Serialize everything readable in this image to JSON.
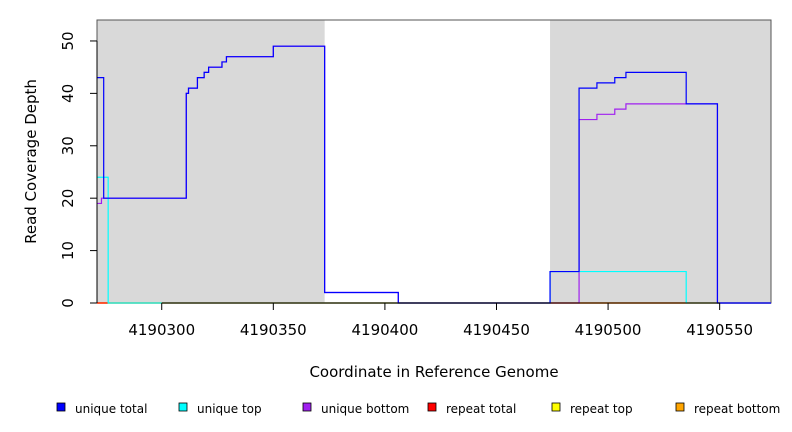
{
  "chart_data": {
    "type": "line",
    "title": "",
    "xlabel": "Coordinate in Reference Genome",
    "ylabel": "Read Coverage Depth",
    "xlim": [
      4190271,
      4190573
    ],
    "ylim": [
      0,
      54
    ],
    "x_ticks": [
      "4190300",
      "4190350",
      "4190400",
      "4190450",
      "4190500",
      "4190550"
    ],
    "x_tick_values": [
      4190300,
      4190350,
      4190400,
      4190450,
      4190500,
      4190550
    ],
    "y_ticks": [
      "0",
      "10",
      "20",
      "30",
      "40",
      "50"
    ],
    "y_tick_values": [
      0,
      10,
      20,
      30,
      40,
      50
    ],
    "grid": false,
    "shaded_regions": [
      {
        "x_start": 4190271,
        "x_end": 4190373,
        "color": "#d9d9d9"
      },
      {
        "x_start": 4190474,
        "x_end": 4190573,
        "color": "#d9d9d9"
      }
    ],
    "series": [
      {
        "name": "unique total",
        "color": "#0000ff",
        "x": [
          4190271,
          4190274,
          4190276,
          4190311,
          4190312,
          4190316,
          4190319,
          4190321,
          4190327,
          4190329,
          4190350,
          4190373,
          4190406,
          4190474,
          4190487,
          4190495,
          4190503,
          4190508,
          4190535,
          4190549,
          4190573
        ],
        "y": [
          43,
          20,
          20,
          40,
          41,
          43,
          44,
          45,
          46,
          47,
          49,
          2,
          0,
          6,
          41,
          42,
          43,
          44,
          38,
          0,
          0
        ]
      },
      {
        "name": "unique top",
        "color": "#00ffff",
        "x": [
          4190271,
          4190274,
          4190276,
          4190474,
          4190535,
          4190573
        ],
        "y": [
          24,
          24,
          0,
          6,
          0,
          0
        ]
      },
      {
        "name": "unique bottom",
        "color": "#a020f0",
        "x": [
          4190271,
          4190273,
          4190276,
          4190311,
          4190312,
          4190316,
          4190319,
          4190321,
          4190327,
          4190329,
          4190350,
          4190373,
          4190406,
          4190487,
          4190495,
          4190503,
          4190508,
          4190549,
          4190573
        ],
        "y": [
          19,
          20,
          20,
          40,
          41,
          43,
          44,
          45,
          46,
          47,
          49,
          2,
          0,
          35,
          36,
          37,
          38,
          0,
          0
        ]
      },
      {
        "name": "repeat total",
        "color": "#ff0000",
        "x": [
          4190271,
          4190573
        ],
        "y": [
          0,
          0
        ]
      },
      {
        "name": "repeat top",
        "color": "#ffff00",
        "x": [
          4190271,
          4190573
        ],
        "y": [
          0,
          0
        ]
      },
      {
        "name": "repeat bottom",
        "color": "#ffa500",
        "x": [
          4190271,
          4190573
        ],
        "y": [
          0,
          0
        ]
      }
    ],
    "legend_position": "bottom"
  }
}
